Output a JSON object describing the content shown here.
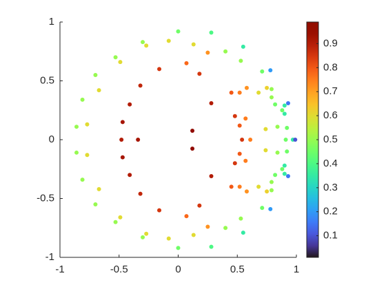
{
  "chart_data": {
    "type": "scatter",
    "x": [
      0.12,
      -0.47,
      -0.41,
      -0.32,
      -0.16,
      0.18,
      0.28,
      0.07,
      0.25,
      0,
      -0.08,
      -0.3,
      -0.27,
      -0.53,
      -0.49,
      -0.7,
      -0.67,
      -0.81,
      -0.77,
      -0.86,
      0.28,
      0.13,
      0.4,
      0.55,
      0.53,
      0.71,
      0.78,
      0.58,
      0.75,
      0.79,
      0.68,
      0.45,
      0.52,
      0.79,
      0.82,
      0.9,
      0.93,
      0.88,
      0.9,
      0.48,
      0.57,
      0.74,
      0.84,
      0.92,
      0.52,
      0.12,
      -0.47,
      -0.41,
      -0.32,
      -0.16,
      0.18,
      0.28,
      0.07,
      0.25,
      0,
      -0.08,
      -0.3,
      -0.27,
      -0.53,
      -0.49,
      -0.7,
      -0.67,
      -0.81,
      -0.77,
      -0.86,
      0.28,
      0.13,
      0.4,
      0.55,
      0.53,
      0.71,
      0.78,
      0.58,
      0.75,
      0.79,
      0.68,
      0.45,
      0.52,
      0.79,
      0.82,
      0.9,
      0.93,
      0.88,
      0.9,
      0.48,
      0.57,
      0.74,
      0.84,
      0.92,
      0.52,
      -0.48,
      -0.34,
      0.54,
      0.61,
      0.91,
      0.97,
      0.99
    ],
    "y": [
      0.076,
      0.15,
      0.3,
      0.46,
      0.6,
      0.56,
      0.31,
      0.65,
      0.74,
      0.92,
      0.84,
      0.83,
      0.8,
      0.7,
      0.66,
      0.55,
      0.42,
      0.34,
      0.13,
      0.11,
      0.91,
      0.81,
      0.75,
      0.79,
      0.67,
      0.58,
      0.59,
      0.44,
      0.44,
      0.43,
      0.4,
      0.4,
      0.4,
      0.36,
      0.3,
      0.29,
      0.31,
      0.25,
      0.22,
      0.2,
      0.18,
      0.09,
      0.11,
      0.1,
      0.12,
      -0.076,
      -0.15,
      -0.3,
      -0.46,
      -0.6,
      -0.56,
      -0.31,
      -0.65,
      -0.74,
      -0.92,
      -0.84,
      -0.83,
      -0.8,
      -0.7,
      -0.66,
      -0.55,
      -0.42,
      -0.34,
      -0.13,
      -0.11,
      -0.91,
      -0.81,
      -0.75,
      -0.79,
      -0.67,
      -0.58,
      -0.59,
      -0.44,
      -0.44,
      -0.43,
      -0.4,
      -0.4,
      -0.4,
      -0.36,
      -0.3,
      -0.29,
      -0.31,
      -0.25,
      -0.22,
      -0.2,
      -0.18,
      -0.09,
      -0.11,
      -0.1,
      -0.12,
      0,
      0,
      0,
      0,
      0,
      0,
      0
    ],
    "c": [
      0.97,
      0.92,
      0.9,
      0.88,
      0.85,
      0.85,
      0.9,
      0.78,
      0.72,
      0.45,
      0.6,
      0.5,
      0.6,
      0.5,
      0.6,
      0.5,
      0.6,
      0.5,
      0.6,
      0.5,
      0.4,
      0.6,
      0.5,
      0.35,
      0.5,
      0.45,
      0.2,
      0.72,
      0.62,
      0.5,
      0.6,
      0.8,
      0.75,
      0.5,
      0.45,
      0.35,
      0.15,
      0.45,
      0.35,
      0.85,
      0.75,
      0.6,
      0.5,
      0.45,
      0.8,
      0.97,
      0.92,
      0.9,
      0.88,
      0.85,
      0.85,
      0.9,
      0.78,
      0.72,
      0.45,
      0.6,
      0.5,
      0.6,
      0.5,
      0.6,
      0.5,
      0.6,
      0.5,
      0.6,
      0.5,
      0.4,
      0.6,
      0.5,
      0.35,
      0.5,
      0.45,
      0.2,
      0.72,
      0.62,
      0.5,
      0.6,
      0.8,
      0.75,
      0.5,
      0.45,
      0.35,
      0.15,
      0.45,
      0.35,
      0.85,
      0.75,
      0.6,
      0.5,
      0.45,
      0.8,
      0.9,
      0.92,
      0.85,
      0.75,
      0.45,
      0.35,
      0.1
    ],
    "colormap": "turbo",
    "clim": [
      0.01,
      0.99
    ],
    "cticks": [
      0.1,
      0.2,
      0.3,
      0.4,
      0.5,
      0.6,
      0.7,
      0.8,
      0.9
    ],
    "xlim": [
      -1,
      1
    ],
    "xticks": [
      -1,
      -0.5,
      0,
      0.5,
      1
    ],
    "ylim": [
      -1,
      1
    ],
    "yticks": [
      -1,
      -0.5,
      0,
      0.5,
      1
    ]
  }
}
